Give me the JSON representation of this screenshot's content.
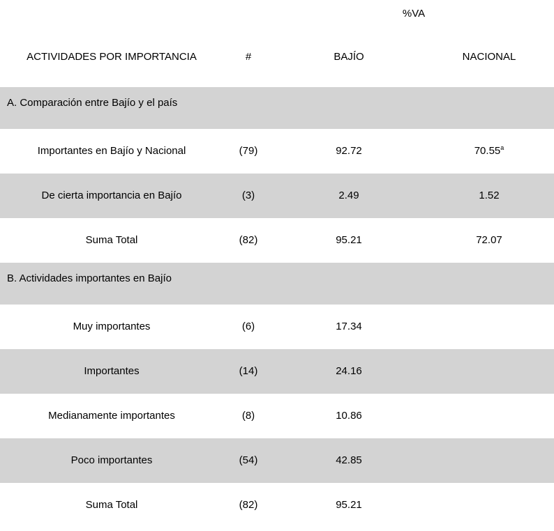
{
  "table": {
    "span_header": "%VA",
    "columns": [
      "ACTIVIDADES POR IMPORTANCIA",
      "#",
      "BAJÍO",
      "NACIONAL"
    ],
    "sections": [
      {
        "title": "A. Comparación entre Bajío y el país",
        "rows": [
          {
            "label": "Importantes en Bajío y Nacional",
            "count": "(79)",
            "bajio": "92.72",
            "nacional": "70.55",
            "nacional_sup": "a",
            "shaded": false
          },
          {
            "label": "De cierta importancia en Bajío",
            "count": "(3)",
            "bajio": "2.49",
            "nacional": "1.52",
            "shaded": true
          },
          {
            "label": "Suma Total",
            "count": "(82)",
            "bajio": "95.21",
            "nacional": "72.07",
            "shaded": false
          }
        ]
      },
      {
        "title": "B. Actividades importantes en Bajío",
        "rows": [
          {
            "label": "Muy importantes",
            "count": "(6)",
            "bajio": "17.34",
            "nacional": "",
            "shaded": false
          },
          {
            "label": "Importantes",
            "count": "(14)",
            "bajio": "24.16",
            "nacional": "",
            "shaded": true
          },
          {
            "label": "Medianamente importantes",
            "count": "(8)",
            "bajio": "10.86",
            "nacional": "",
            "shaded": false
          },
          {
            "label": "Poco importantes",
            "count": "(54)",
            "bajio": "42.85",
            "nacional": "",
            "shaded": true
          },
          {
            "label": "Suma Total",
            "count": "(82)",
            "bajio": "95.21",
            "nacional": "",
            "shaded": false
          }
        ]
      }
    ],
    "colors": {
      "shaded_row": "#d3d3d3",
      "text": "#000000",
      "background": "#ffffff"
    }
  }
}
